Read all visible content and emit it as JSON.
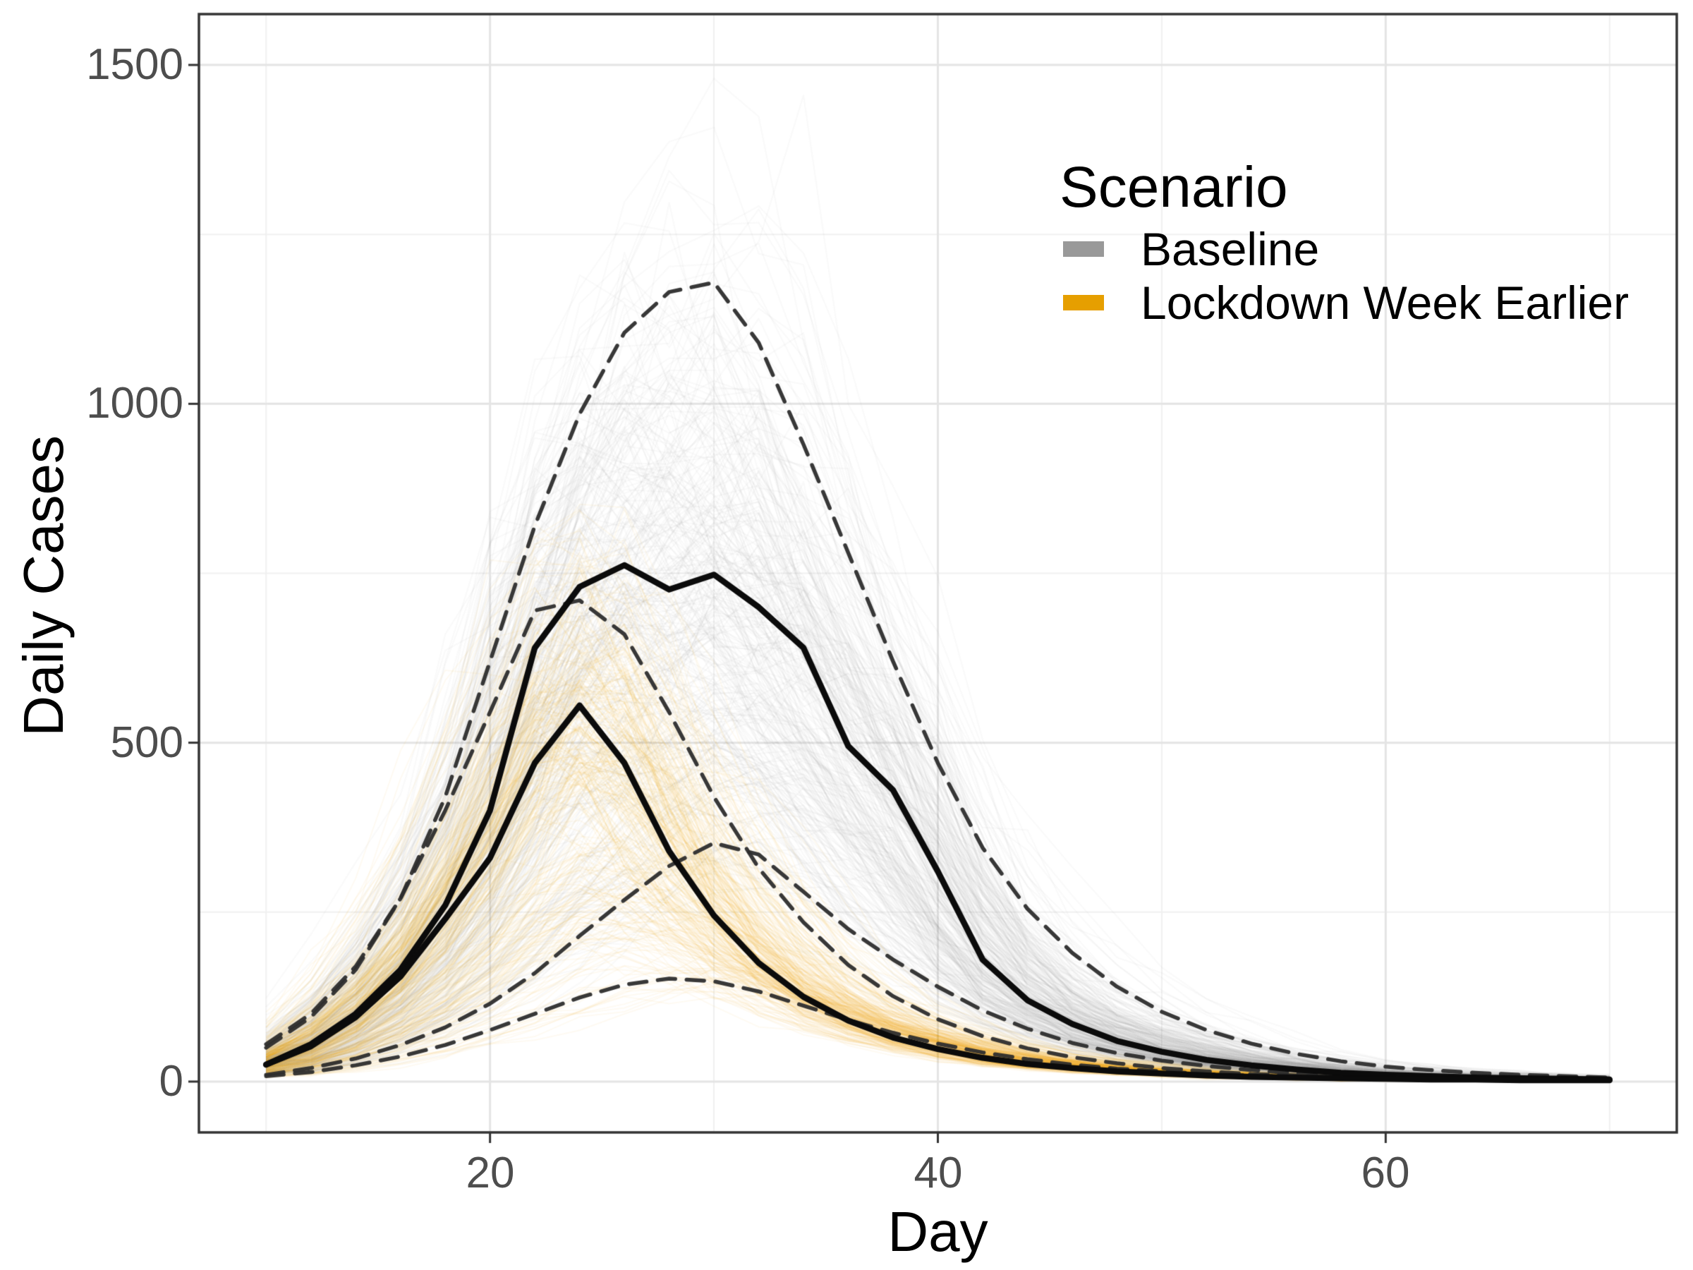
{
  "figure": {
    "x_axis_title": "Day",
    "y_axis_title": "Daily Cases"
  },
  "legend": {
    "title": "Scenario",
    "items": [
      {
        "label": "Baseline",
        "color": "#999999"
      },
      {
        "label": "Lockdown Week Earlier",
        "color": "#E69F00"
      }
    ]
  },
  "chart_data": {
    "type": "line",
    "title": "",
    "xlabel": "Day",
    "ylabel": "Daily Cases",
    "x_ticks": [
      20,
      40,
      60
    ],
    "y_ticks": [
      0,
      500,
      1000,
      1500
    ],
    "x_minor_gridlines": [
      10,
      30,
      50,
      70
    ],
    "y_minor_gridlines": [
      250,
      750,
      1250
    ],
    "xlim": [
      7,
      73
    ],
    "ylim": [
      -75,
      1575
    ],
    "grid": true,
    "legend_position": "inside-top-right",
    "days": [
      10,
      12,
      14,
      16,
      18,
      20,
      22,
      24,
      26,
      28,
      30,
      32,
      34,
      36,
      38,
      40,
      42,
      44,
      46,
      48,
      50,
      52,
      54,
      56,
      58,
      60,
      62,
      64,
      66,
      68,
      70
    ],
    "series": [
      {
        "name": "Baseline median",
        "scenario": "Baseline",
        "style": "solid",
        "color": "#0b0b0b",
        "values": [
          25,
          55,
          100,
          165,
          260,
          400,
          640,
          730,
          762,
          726,
          748,
          700,
          640,
          495,
          430,
          310,
          180,
          120,
          85,
          60,
          44,
          32,
          24,
          18,
          13,
          10,
          8,
          6,
          5,
          4,
          3
        ]
      },
      {
        "name": "Baseline upper quantile",
        "scenario": "Baseline",
        "style": "dashed",
        "color": "#2d2d2d",
        "values": [
          50,
          95,
          165,
          270,
          420,
          620,
          820,
          985,
          1105,
          1165,
          1179,
          1090,
          940,
          780,
          620,
          470,
          345,
          255,
          190,
          140,
          103,
          76,
          56,
          41,
          30,
          22,
          17,
          13,
          10,
          8,
          6
        ]
      },
      {
        "name": "Baseline lower quantile",
        "scenario": "Baseline",
        "style": "dashed",
        "color": "#2d2d2d",
        "values": [
          10,
          20,
          34,
          54,
          80,
          115,
          160,
          215,
          268,
          318,
          352,
          335,
          280,
          225,
          180,
          140,
          105,
          78,
          57,
          42,
          31,
          23,
          17,
          12,
          9,
          7,
          5,
          4,
          3,
          2,
          2
        ]
      },
      {
        "name": "Lockdown median",
        "scenario": "Lockdown Week Earlier",
        "style": "solid",
        "color": "#0b0b0b",
        "values": [
          25,
          52,
          95,
          155,
          240,
          330,
          470,
          555,
          470,
          340,
          245,
          175,
          125,
          90,
          65,
          48,
          35,
          26,
          20,
          15,
          12,
          9,
          7,
          6,
          5,
          4,
          3,
          3,
          2,
          2,
          2
        ]
      },
      {
        "name": "Lockdown upper quantile",
        "scenario": "Lockdown Week Earlier",
        "style": "dashed",
        "color": "#2d2d2d",
        "values": [
          55,
          100,
          170,
          270,
          400,
          545,
          695,
          710,
          660,
          545,
          420,
          315,
          235,
          172,
          126,
          92,
          67,
          49,
          36,
          27,
          20,
          15,
          11,
          9,
          7,
          5,
          4,
          3,
          3,
          2,
          2
        ]
      },
      {
        "name": "Lockdown lower quantile",
        "scenario": "Lockdown Week Earlier",
        "style": "dashed",
        "color": "#2d2d2d",
        "values": [
          8,
          14,
          24,
          37,
          54,
          76,
          100,
          124,
          143,
          152,
          148,
          133,
          112,
          91,
          72,
          56,
          43,
          33,
          25,
          19,
          15,
          11,
          9,
          7,
          5,
          4,
          3,
          3,
          2,
          2,
          1
        ]
      }
    ],
    "ensemble": {
      "baseline": {
        "color": "#999999",
        "n": 330,
        "alpha": 0.055,
        "day_jitter": 1.3,
        "seed": 1337
      },
      "lockdown": {
        "color": "#E69F00",
        "n": 330,
        "alpha": 0.055,
        "day_jitter": 1.1,
        "seed": 4242
      }
    }
  }
}
